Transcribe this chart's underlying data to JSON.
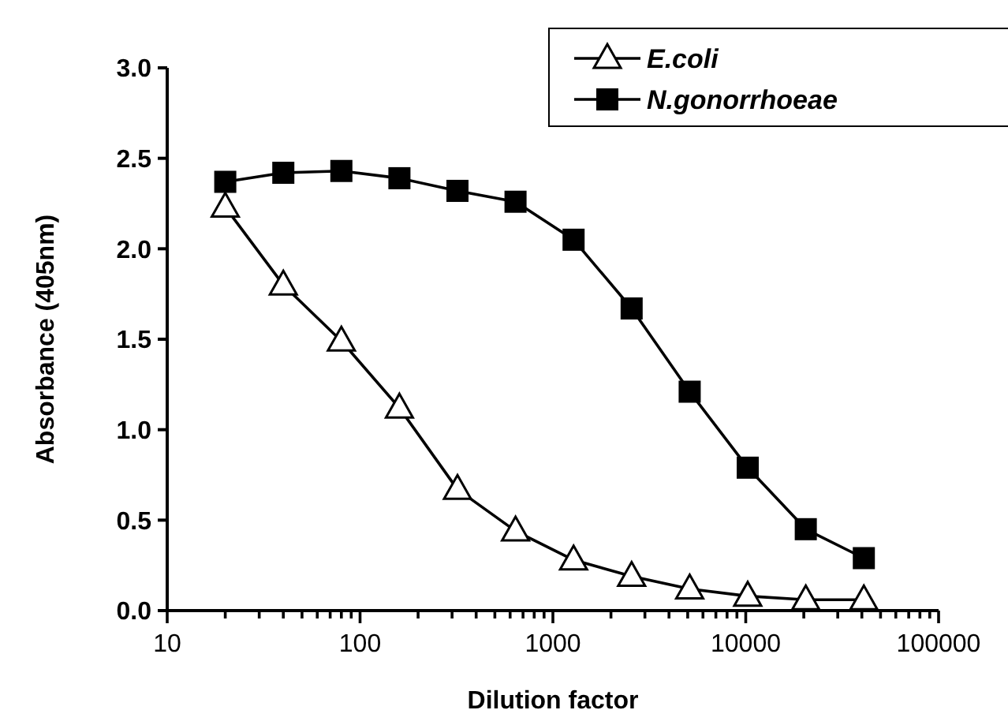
{
  "chart_data": {
    "type": "line",
    "xlabel": "Dilution factor",
    "ylabel": "Absorbance (405nm)",
    "x": [
      20,
      40,
      80,
      160,
      320,
      640,
      1280,
      2560,
      5120,
      10240,
      20480,
      40960
    ],
    "series": [
      {
        "name": "E.coli",
        "color": "#000000",
        "marker": "triangle",
        "values": [
          2.23,
          1.8,
          1.49,
          1.12,
          0.67,
          0.44,
          0.28,
          0.19,
          0.12,
          0.08,
          0.06,
          0.06
        ]
      },
      {
        "name": "N.gonorrhoeae",
        "color": "#000000",
        "marker": "square",
        "values": [
          2.37,
          2.42,
          2.43,
          2.39,
          2.32,
          2.26,
          2.05,
          1.67,
          1.21,
          0.79,
          0.45,
          0.29
        ]
      }
    ],
    "log": "x",
    "xlim": [
      10,
      100000
    ],
    "xticks": [
      10,
      {
        "value": 20,
        "label": null
      },
      {
        "value": 30,
        "label": null
      },
      {
        "value": 40,
        "label": null
      },
      {
        "value": 50,
        "label": null
      },
      {
        "value": 60,
        "label": null
      },
      {
        "value": 70,
        "label": null
      },
      {
        "value": 80,
        "label": null
      },
      {
        "value": 90,
        "label": null
      },
      100,
      {
        "value": 200,
        "label": null
      },
      {
        "value": 300,
        "label": null
      },
      {
        "value": 400,
        "label": null
      },
      {
        "value": 500,
        "label": null
      },
      {
        "value": 600,
        "label": null
      },
      {
        "value": 700,
        "label": null
      },
      {
        "value": 800,
        "label": null
      },
      {
        "value": 900,
        "label": null
      },
      1000,
      {
        "value": 2000,
        "label": null
      },
      {
        "value": 3000,
        "label": null
      },
      {
        "value": 4000,
        "label": null
      },
      {
        "value": 5000,
        "label": null
      },
      {
        "value": 6000,
        "label": null
      },
      {
        "value": 7000,
        "label": null
      },
      {
        "value": 8000,
        "label": null
      },
      {
        "value": 9000,
        "label": null
      },
      10000,
      {
        "value": 20000,
        "label": null
      },
      {
        "value": 30000,
        "label": null
      },
      {
        "value": 40000,
        "label": null
      },
      {
        "value": 50000,
        "label": null
      },
      {
        "value": 60000,
        "label": null
      },
      {
        "value": 70000,
        "label": null
      },
      {
        "value": 80000,
        "label": null
      },
      {
        "value": 90000,
        "label": null
      },
      100000
    ],
    "ylim": [
      0,
      3
    ],
    "yticks": [
      {
        "value": 0,
        "label": "0.0"
      },
      {
        "value": 0.5,
        "label": "0.5"
      },
      {
        "value": 1,
        "label": "1.0"
      },
      {
        "value": 1.5,
        "label": "1.5"
      },
      {
        "value": 2,
        "label": "2.0"
      },
      {
        "value": 2.5,
        "label": "2.5"
      },
      {
        "value": 3,
        "label": "3.0"
      }
    ],
    "grid": false,
    "legend": "top right",
    "line_style": "solid"
  }
}
